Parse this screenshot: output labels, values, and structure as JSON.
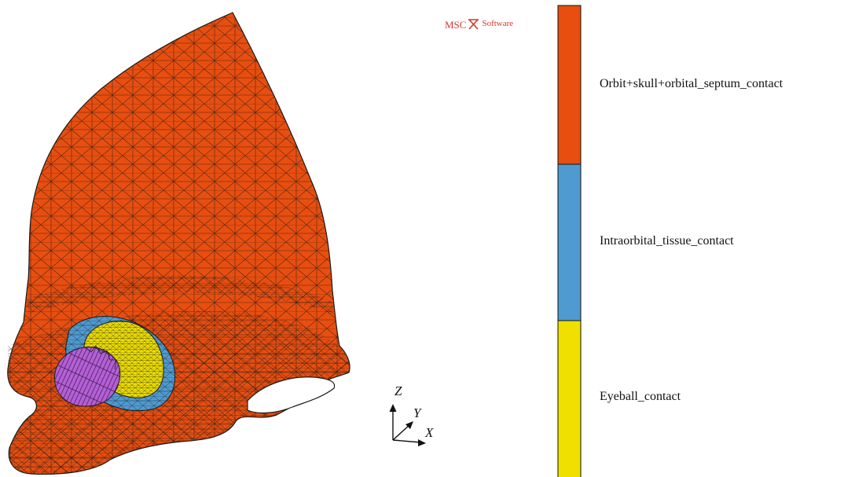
{
  "logo": {
    "brand": "MSC",
    "product": "Software"
  },
  "triad": {
    "z": "Z",
    "y": "Y",
    "x": "X"
  },
  "legend": {
    "items": [
      {
        "label": "Orbit+skull+orbital_septum_contact",
        "color": "#e84e0f"
      },
      {
        "label": "Intraorbital_tissue_contact",
        "color": "#4f9ad0"
      },
      {
        "label": "Eyeball_contact",
        "color": "#efe000"
      }
    ]
  },
  "model": {
    "parts": [
      {
        "name": "orbit-skull-septum",
        "color": "#e84e0f"
      },
      {
        "name": "intraorbital-tissue",
        "color": "#4f9ad0"
      },
      {
        "name": "eyeball",
        "color": "#efe000"
      },
      {
        "name": "optic-nerve-bundle",
        "color": "#b45fd6"
      }
    ],
    "mesh_color": "#1a1a1a"
  }
}
